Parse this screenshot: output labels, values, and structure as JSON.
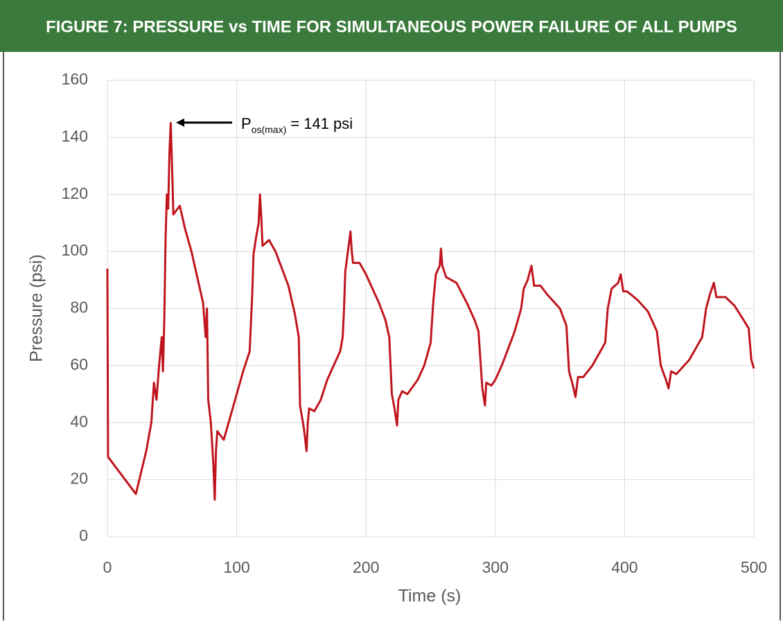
{
  "chart_data": {
    "type": "line",
    "title": "FIGURE 7: PRESSURE vs TIME FOR SIMULTANEOUS POWER FAILURE OF ALL PUMPS",
    "x_label": "Time (s)",
    "y_label": "Pressure (psi)",
    "annotation": {
      "main": "P",
      "subscript": "os(max)",
      "text": "= 141 psi"
    },
    "xlim": [
      0,
      500
    ],
    "xticks": [
      0,
      100,
      200,
      300,
      400,
      500
    ],
    "ylim": [
      0,
      160
    ],
    "yticks": [
      0,
      20,
      40,
      60,
      80,
      100,
      120,
      140,
      160
    ],
    "grid": true,
    "series": [
      {
        "color": "#c0141c",
        "x": [
          0,
          0.5,
          22,
          30,
          34,
          36,
          38,
          40,
          42,
          43,
          44,
          45,
          46,
          47,
          48,
          49,
          50,
          51,
          56,
          60,
          65,
          70,
          74,
          76,
          77,
          78,
          80,
          82,
          83,
          84,
          85,
          90,
          95,
          100,
          105,
          110,
          112,
          113,
          115,
          117,
          118,
          119,
          120,
          125,
          130,
          135,
          140,
          145,
          148,
          149,
          152,
          154,
          155,
          156,
          160,
          165,
          170,
          175,
          180,
          182,
          183,
          184,
          186,
          188,
          189,
          190,
          195,
          200,
          205,
          210,
          215,
          218,
          220,
          222,
          224,
          225,
          228,
          232,
          240,
          245,
          250,
          252,
          254,
          257,
          258,
          259,
          262,
          270,
          278,
          284,
          287,
          290,
          292,
          293,
          297,
          300,
          305,
          310,
          315,
          320,
          322,
          325,
          328,
          330,
          335,
          340,
          350,
          355,
          357,
          360,
          362,
          364,
          368,
          375,
          385,
          387,
          390,
          395,
          397,
          399,
          402,
          410,
          418,
          425,
          428,
          432,
          434,
          436,
          440,
          450,
          460,
          463,
          466,
          469,
          471,
          478,
          485,
          492,
          496,
          498,
          500
        ],
        "values": [
          94,
          28,
          15,
          30,
          40,
          54,
          48,
          60,
          70,
          58,
          76,
          105,
          120,
          115,
          135,
          145,
          130,
          113,
          116,
          108,
          100,
          90,
          82,
          70,
          80,
          48,
          40,
          25,
          13,
          30,
          37,
          34,
          42,
          50,
          58,
          65,
          85,
          99,
          105,
          110,
          120,
          112,
          102,
          104,
          100,
          94,
          88,
          78,
          70,
          46,
          38,
          30,
          40,
          45,
          44,
          48,
          55,
          60,
          65,
          70,
          80,
          93,
          100,
          107,
          100,
          96,
          96,
          92,
          87,
          82,
          76,
          70,
          50,
          45,
          39,
          48,
          51,
          50,
          55,
          60,
          68,
          82,
          92,
          95,
          101,
          95,
          91,
          89,
          82,
          76,
          72,
          52,
          46,
          54,
          53,
          55,
          60,
          66,
          72,
          80,
          87,
          90,
          95,
          88,
          88,
          85,
          80,
          74,
          58,
          53,
          49,
          56,
          56,
          60,
          68,
          80,
          87,
          89,
          92,
          86,
          86,
          83,
          79,
          72,
          60,
          55,
          52,
          58,
          57,
          62,
          70,
          80,
          85,
          89,
          84,
          84,
          81,
          76,
          73,
          62,
          59
        ]
      }
    ]
  }
}
